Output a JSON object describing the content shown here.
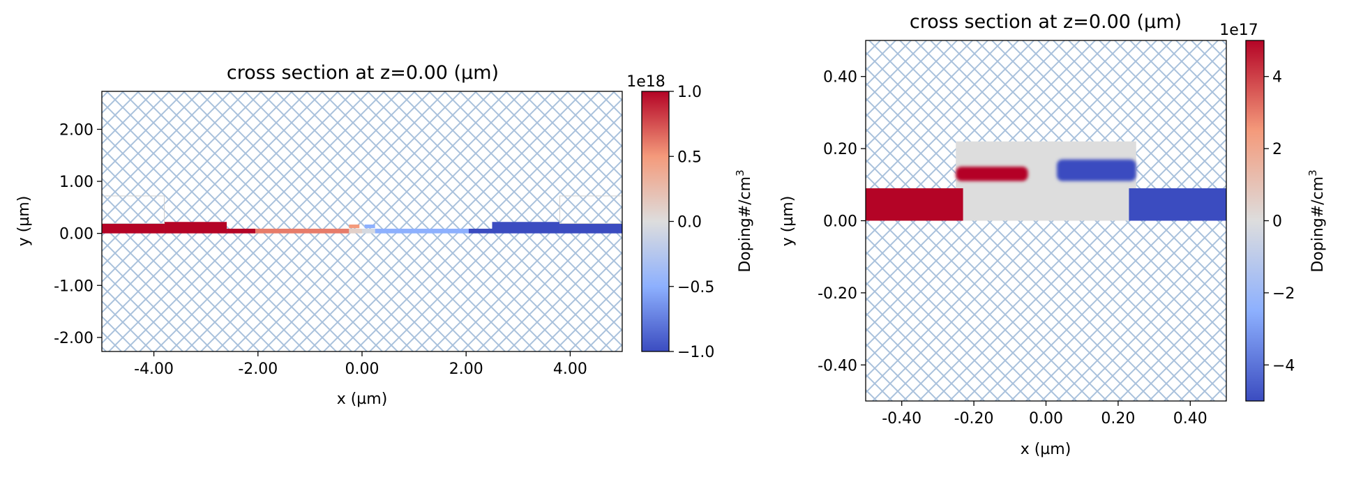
{
  "figure": {
    "colormap": "coolwarm",
    "hatch_color": "#a9c1dc",
    "background": "#ffffff"
  },
  "chart_data": [
    {
      "type": "heatmap",
      "title": "cross section at z=0.00 (µm)",
      "xlabel": "x (µm)",
      "ylabel": "y (µm)",
      "xlim": [
        -5,
        5
      ],
      "ylim": [
        -2.27,
        2.73
      ],
      "xticks": [
        -4,
        -2,
        0,
        2,
        4
      ],
      "xticklabels": [
        "-4.00",
        "-2.00",
        "0.00",
        "2.00",
        "4.00"
      ],
      "yticks": [
        -2,
        -1,
        0,
        1,
        2
      ],
      "yticklabels": [
        "-2.00",
        "-1.00",
        "0.00",
        "1.00",
        "2.00"
      ],
      "colorbar": {
        "label": "Doping#/cm³",
        "label_main": "Doping#/cm",
        "label_sup": "3",
        "offset_text": "1e18",
        "range": [
          -1.0,
          1.0
        ],
        "ticks": [
          1.0,
          0.5,
          0.0,
          -0.5,
          -1.0
        ],
        "ticklabels": [
          "1.0",
          "0.5",
          "0.0",
          "−0.5",
          "−1.0"
        ]
      },
      "regions": [
        {
          "x0": -5.0,
          "x1": -3.8,
          "y0": 0.0,
          "y1": 0.19,
          "value": 1.0
        },
        {
          "x0": -3.8,
          "x1": -2.6,
          "y0": 0.0,
          "y1": 0.22,
          "value": 1.0
        },
        {
          "x0": -2.6,
          "x1": -2.05,
          "y0": 0.0,
          "y1": 0.09,
          "value": 1.0
        },
        {
          "x0": -2.05,
          "x1": -0.25,
          "y0": 0.0,
          "y1": 0.09,
          "value": 0.6
        },
        {
          "x0": -0.25,
          "x1": 0.0,
          "y0": 0.0,
          "y1": 0.09,
          "value": 0.1
        },
        {
          "x0": -0.25,
          "x1": -0.05,
          "y0": 0.1,
          "y1": 0.17,
          "value": 0.5
        },
        {
          "x0": 0.0,
          "x1": 0.25,
          "y0": 0.0,
          "y1": 0.09,
          "value": -0.05
        },
        {
          "x0": 0.05,
          "x1": 0.25,
          "y0": 0.1,
          "y1": 0.17,
          "value": -0.5
        },
        {
          "x0": 0.25,
          "x1": 2.05,
          "y0": 0.0,
          "y1": 0.09,
          "value": -0.5
        },
        {
          "x0": 2.05,
          "x1": 2.5,
          "y0": 0.0,
          "y1": 0.09,
          "value": -1.0
        },
        {
          "x0": 2.5,
          "x1": 3.8,
          "y0": 0.0,
          "y1": 0.22,
          "value": -1.0
        },
        {
          "x0": 3.8,
          "x1": 5.0,
          "y0": 0.0,
          "y1": 0.19,
          "value": -1.0
        }
      ],
      "outlines": [
        {
          "x0": -5.0,
          "x1": -3.8,
          "y0": 0.19,
          "y1": 0.72
        },
        {
          "x0": 3.8,
          "x1": 5.0,
          "y0": 0.19,
          "y1": 0.72
        }
      ]
    },
    {
      "type": "heatmap",
      "title": "cross section at z=0.00 (µm)",
      "xlabel": "x (µm)",
      "ylabel": "y (µm)",
      "xlim": [
        -0.5,
        0.5
      ],
      "ylim": [
        -0.5,
        0.5
      ],
      "xticks": [
        -0.4,
        -0.2,
        0.0,
        0.2,
        0.4
      ],
      "xticklabels": [
        "-0.40",
        "-0.20",
        "0.00",
        "0.20",
        "0.40"
      ],
      "yticks": [
        -0.4,
        -0.2,
        0.0,
        0.2,
        0.4
      ],
      "yticklabels": [
        "-0.40",
        "-0.20",
        "0.00",
        "0.20",
        "0.40"
      ],
      "colorbar": {
        "label": "Doping#/cm³",
        "label_main": "Doping#/cm",
        "label_sup": "3",
        "offset_text": "1e17",
        "range": [
          -5,
          5
        ],
        "ticks": [
          4,
          2,
          0,
          -2,
          -4
        ],
        "ticklabels": [
          "4",
          "2",
          "0",
          "−2",
          "−4"
        ]
      },
      "regions": [
        {
          "x0": -0.25,
          "x1": 0.25,
          "y0": 0.0,
          "y1": 0.22,
          "value": 0.0
        },
        {
          "x0": -0.5,
          "x1": -0.23,
          "y0": 0.0,
          "y1": 0.09,
          "value": 5.0
        },
        {
          "x0": 0.23,
          "x1": 0.5,
          "y0": 0.0,
          "y1": 0.09,
          "value": -5.0
        },
        {
          "x0": -0.25,
          "x1": -0.05,
          "y0": 0.11,
          "y1": 0.15,
          "value": 5.0,
          "rounded": true
        },
        {
          "x0": 0.03,
          "x1": 0.25,
          "y0": 0.11,
          "y1": 0.17,
          "value": -5.0,
          "rounded": true
        }
      ],
      "outlines": []
    }
  ]
}
